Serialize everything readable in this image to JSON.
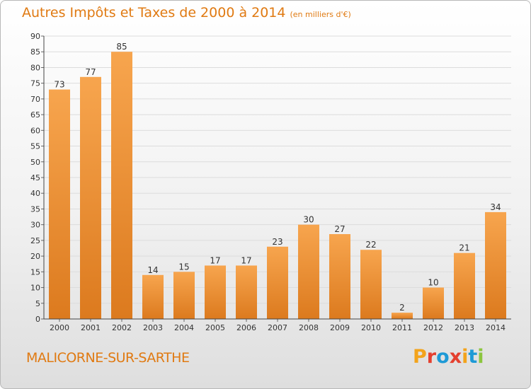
{
  "header": {
    "title": "Autres Impôts et Taxes de 2000 à 2014",
    "subtitle": "(en milliers d'€)"
  },
  "footer": {
    "commune": "MALICORNE-SUR-SARTHE",
    "logo_text": "Proxiti",
    "logo_colors": [
      "#f3a31b",
      "#e4402f",
      "#1e9ad6",
      "#e4402f",
      "#f3a31b",
      "#1e9ad6",
      "#8cc63f"
    ]
  },
  "colors": {
    "bar_top": "#f7a54e",
    "bar_bottom": "#dc7a1e",
    "accent": "#e07a12",
    "grid": "#dcdcdc"
  },
  "chart_data": {
    "type": "bar",
    "categories": [
      "2000",
      "2001",
      "2002",
      "2003",
      "2004",
      "2005",
      "2006",
      "2007",
      "2008",
      "2009",
      "2010",
      "2011",
      "2012",
      "2013",
      "2014"
    ],
    "values": [
      73,
      77,
      85,
      14,
      15,
      17,
      17,
      23,
      30,
      27,
      22,
      2,
      10,
      21,
      34
    ],
    "ylim": [
      0,
      90
    ],
    "yticks": [
      0,
      5,
      10,
      15,
      20,
      25,
      30,
      35,
      40,
      45,
      50,
      55,
      60,
      65,
      70,
      75,
      80,
      85,
      90
    ],
    "grid": true,
    "data_labels": true
  }
}
